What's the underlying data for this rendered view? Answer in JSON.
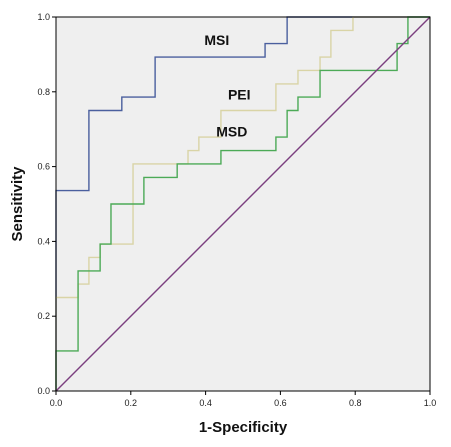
{
  "chart_data": {
    "type": "line",
    "title": "",
    "xlabel": "1-Specificity",
    "ylabel": "Sensitivity",
    "xlim": [
      0,
      1
    ],
    "ylim": [
      0,
      1
    ],
    "x_ticks": [
      "0.0",
      "0.2",
      "0.4",
      "0.6",
      "0.8",
      "1.0"
    ],
    "y_ticks": [
      "0.0",
      "0.2",
      "0.4",
      "0.6",
      "0.8",
      "1.0"
    ],
    "grid": false,
    "legend": "none",
    "background_color": "#efefef",
    "series": [
      {
        "name": "MSI",
        "color": "#4a5f9e",
        "points": [
          [
            0,
            0
          ],
          [
            0,
            0.536
          ],
          [
            0.088,
            0.536
          ],
          [
            0.088,
            0.75
          ],
          [
            0.176,
            0.75
          ],
          [
            0.176,
            0.786
          ],
          [
            0.265,
            0.786
          ],
          [
            0.265,
            0.893
          ],
          [
            0.559,
            0.893
          ],
          [
            0.559,
            0.929
          ],
          [
            0.618,
            0.929
          ],
          [
            0.618,
            1
          ],
          [
            1,
            1
          ]
        ]
      },
      {
        "name": "PEI",
        "color": "#d9d4a6",
        "points": [
          [
            0,
            0
          ],
          [
            0,
            0.25
          ],
          [
            0.059,
            0.25
          ],
          [
            0.059,
            0.286
          ],
          [
            0.088,
            0.286
          ],
          [
            0.088,
            0.357
          ],
          [
            0.118,
            0.357
          ],
          [
            0.118,
            0.393
          ],
          [
            0.206,
            0.393
          ],
          [
            0.206,
            0.607
          ],
          [
            0.353,
            0.607
          ],
          [
            0.353,
            0.643
          ],
          [
            0.382,
            0.643
          ],
          [
            0.382,
            0.679
          ],
          [
            0.441,
            0.679
          ],
          [
            0.441,
            0.75
          ],
          [
            0.588,
            0.75
          ],
          [
            0.588,
            0.821
          ],
          [
            0.647,
            0.821
          ],
          [
            0.647,
            0.857
          ],
          [
            0.706,
            0.857
          ],
          [
            0.706,
            0.893
          ],
          [
            0.735,
            0.893
          ],
          [
            0.735,
            0.964
          ],
          [
            0.794,
            0.964
          ],
          [
            0.794,
            1
          ],
          [
            1,
            1
          ]
        ]
      },
      {
        "name": "MSD",
        "color": "#4caa57",
        "points": [
          [
            0,
            0
          ],
          [
            0,
            0.107
          ],
          [
            0.059,
            0.107
          ],
          [
            0.059,
            0.321
          ],
          [
            0.118,
            0.321
          ],
          [
            0.118,
            0.393
          ],
          [
            0.147,
            0.393
          ],
          [
            0.147,
            0.5
          ],
          [
            0.235,
            0.5
          ],
          [
            0.235,
            0.571
          ],
          [
            0.324,
            0.571
          ],
          [
            0.324,
            0.607
          ],
          [
            0.441,
            0.607
          ],
          [
            0.441,
            0.643
          ],
          [
            0.588,
            0.643
          ],
          [
            0.588,
            0.679
          ],
          [
            0.618,
            0.679
          ],
          [
            0.618,
            0.75
          ],
          [
            0.647,
            0.75
          ],
          [
            0.647,
            0.786
          ],
          [
            0.706,
            0.786
          ],
          [
            0.706,
            0.857
          ],
          [
            0.912,
            0.857
          ],
          [
            0.912,
            0.929
          ],
          [
            0.941,
            0.929
          ],
          [
            0.941,
            1
          ],
          [
            1,
            1
          ]
        ]
      },
      {
        "name": "",
        "color": "#7b3f7f",
        "points": [
          [
            0,
            0
          ],
          [
            1,
            1
          ]
        ]
      }
    ],
    "annotations": [
      {
        "text": "MSI",
        "x": 0.43,
        "y": 0.925
      },
      {
        "text": "PEI",
        "x": 0.49,
        "y": 0.78
      },
      {
        "text": "MSD",
        "x": 0.47,
        "y": 0.68
      }
    ]
  }
}
